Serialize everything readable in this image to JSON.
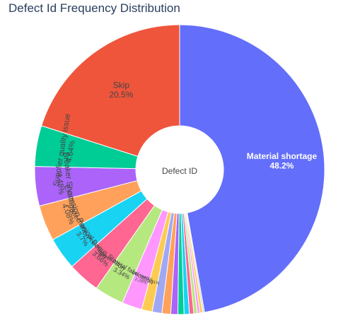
{
  "chart_data": {
    "type": "pie",
    "title": "Defect Id Frequency Distribution",
    "center_label": "Defect ID",
    "slices": [
      {
        "label": "Material shortage",
        "value": 48.2,
        "text": "48.2%",
        "color": "#636efa",
        "text_color": "#ffffff"
      },
      {
        "label": "",
        "value": 0.2,
        "text": "",
        "color": "#c8d4f0",
        "text_color": "#444444"
      },
      {
        "label": "",
        "value": 0.3,
        "text": "",
        "color": "#fecb52",
        "text_color": "#444444"
      },
      {
        "label": "",
        "value": 0.3,
        "text": "",
        "color": "#ff97ff",
        "text_color": "#444444"
      },
      {
        "label": "",
        "value": 0.4,
        "text": "",
        "color": "#b6e880",
        "text_color": "#444444"
      },
      {
        "label": "",
        "value": 0.5,
        "text": "",
        "color": "#ff6692",
        "text_color": "#444444"
      },
      {
        "label": "",
        "value": 0.6,
        "text": "",
        "color": "#19d3f3",
        "text_color": "#444444"
      },
      {
        "label": "",
        "value": 0.7,
        "text": "",
        "color": "#00cc96",
        "text_color": "#444444"
      },
      {
        "label": "",
        "value": 0.8,
        "text": "",
        "color": "#ab63fa",
        "text_color": "#444444"
      },
      {
        "label": "",
        "value": 1.0,
        "text": "",
        "color": "#ffa15a",
        "text_color": "#444444"
      },
      {
        "label": "",
        "value": 1.1,
        "text": "",
        "color": "#a0a8f5",
        "text_color": "#444444"
      },
      {
        "label": "",
        "value": 1.21,
        "text": "1.21%",
        "color": "#fecb52",
        "text_color": "#444444"
      },
      {
        "label": "MB Vendor",
        "value": 2.28,
        "text": "2.28%",
        "color": "#ff97ff",
        "text_color": "#444444"
      },
      {
        "label": "Sheet metal fabrication",
        "value": 3.34,
        "text": "3.34%",
        "color": "#b6e880",
        "text_color": "#444444"
      },
      {
        "label": "Previous Station",
        "value": 3.66,
        "text": "3.66%",
        "color": "#ff6692",
        "text_color": "#444444"
      },
      {
        "label": "Mechanical Design",
        "value": 3.7,
        "text": "3.7%",
        "color": "#19d3f3",
        "text_color": "#444444"
      },
      {
        "label": "Extension Panel",
        "value": 4.08,
        "text": "4.08%",
        "color": "#ffa15a",
        "text_color": "#444444"
      },
      {
        "label": "Breaker Shortage",
        "value": 4.48,
        "text": "4.48%",
        "color": "#ab63fa",
        "text_color": "#444444"
      },
      {
        "label": "Supplier quality issue",
        "value": 4.64,
        "text": "4.64%",
        "color": "#00cc96",
        "text_color": "#444444"
      },
      {
        "label": "Skip",
        "value": 20.5,
        "text": "20.5%",
        "color": "#ef553b",
        "text_color": "#444444"
      }
    ]
  }
}
